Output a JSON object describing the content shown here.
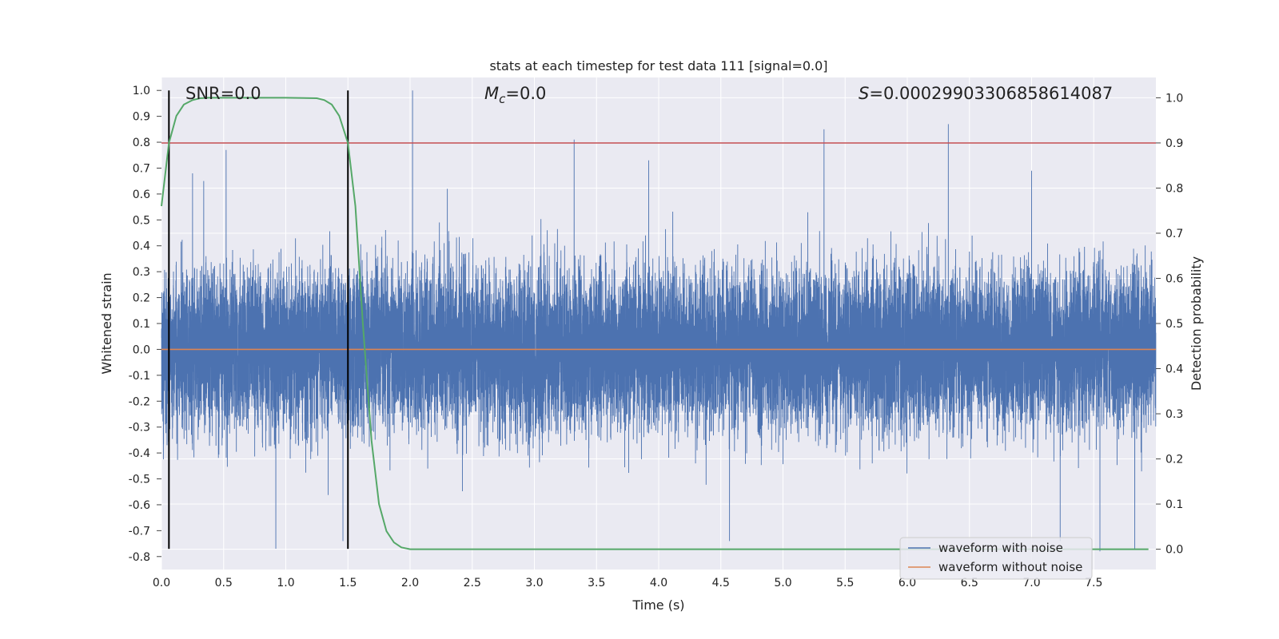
{
  "chart_data": {
    "type": "line",
    "title": "stats at each timestep for test data 111 [signal=0.0]",
    "xlabel": "Time (s)",
    "ylabel": "Whitened strain",
    "ylabel_right": "Detection probability",
    "xlim": [
      0.0,
      8.0
    ],
    "ylim": [
      -0.85,
      1.05
    ],
    "ylim_right": [
      -0.045,
      1.045
    ],
    "x_ticks": [
      "0.0",
      "0.5",
      "1.0",
      "1.5",
      "2.0",
      "2.5",
      "3.0",
      "3.5",
      "4.0",
      "4.5",
      "5.0",
      "5.5",
      "6.0",
      "6.5",
      "7.0",
      "7.5"
    ],
    "y_ticks": [
      "1.0",
      "0.9",
      "0.8",
      "0.7",
      "0.6",
      "0.5",
      "0.4",
      "0.3",
      "0.2",
      "0.1",
      "0.0",
      "-0.1",
      "-0.2",
      "-0.3",
      "-0.4",
      "-0.5",
      "-0.6",
      "-0.7",
      "-0.8"
    ],
    "y_ticks_right": [
      "1.0",
      "0.9",
      "0.8",
      "0.7",
      "0.6",
      "0.5",
      "0.4",
      "0.3",
      "0.2",
      "0.1",
      "0.0"
    ],
    "grid": true,
    "background": "#eaeaf2",
    "annotations": {
      "snr": "SNR=0.0",
      "mc_symbol": "M",
      "mc_sub": "c",
      "mc_value": "=0.0",
      "s_symbol": "S",
      "s_value": "=0.00029903306858614087"
    },
    "vlines_x": [
      0.06,
      1.5
    ],
    "vline_range": [
      -0.77,
      1.0
    ],
    "threshold_right": 0.9,
    "series": [
      {
        "name": "waveform with noise",
        "color": "#4c72b0",
        "axis": "left",
        "t_start": 0.0,
        "t_end": 8.0,
        "sample_rate": 2048,
        "std": 0.155,
        "peaks": [
          {
            "x": 0.06,
            "y": 0.64
          },
          {
            "x": 0.25,
            "y": 0.68
          },
          {
            "x": 0.34,
            "y": 0.65
          },
          {
            "x": 0.52,
            "y": 0.77
          },
          {
            "x": 0.92,
            "y": -0.77
          },
          {
            "x": 1.46,
            "y": -0.74
          },
          {
            "x": 2.02,
            "y": 1.0
          },
          {
            "x": 2.3,
            "y": 0.62
          },
          {
            "x": 3.32,
            "y": 0.81
          },
          {
            "x": 3.92,
            "y": 0.73
          },
          {
            "x": 4.57,
            "y": -0.74
          },
          {
            "x": 5.33,
            "y": 0.85
          },
          {
            "x": 6.33,
            "y": 0.87
          },
          {
            "x": 7.23,
            "y": -0.74
          },
          {
            "x": 7.55,
            "y": -0.78
          },
          {
            "x": 7.83,
            "y": -0.77
          },
          {
            "x": 7.0,
            "y": 0.69
          }
        ]
      },
      {
        "name": "waveform without noise",
        "color": "#dd8452",
        "axis": "left",
        "x": [
          0.0,
          8.0
        ],
        "y": [
          0.0,
          0.0
        ]
      },
      {
        "name": "",
        "color": "#55a868",
        "axis": "right",
        "x": [
          0.0,
          0.06,
          0.12,
          0.18,
          0.25,
          0.31,
          0.37,
          0.5,
          0.75,
          1.0,
          1.25,
          1.31,
          1.37,
          1.43,
          1.5,
          1.56,
          1.62,
          1.69,
          1.75,
          1.81,
          1.87,
          1.93,
          2.0,
          2.5,
          3.0,
          4.0,
          5.0,
          6.0,
          7.0,
          7.94
        ],
        "y": [
          0.76,
          0.9,
          0.96,
          0.985,
          0.995,
          0.999,
          1.0,
          1.0,
          1.0,
          1.0,
          0.999,
          0.995,
          0.985,
          0.96,
          0.9,
          0.76,
          0.5,
          0.24,
          0.1,
          0.04,
          0.015,
          0.004,
          0.0,
          0.0,
          0.0,
          0.0,
          0.0,
          0.0,
          0.0,
          0.0
        ]
      }
    ],
    "legend": {
      "position": "lower-right",
      "entries": [
        {
          "label": "waveform with noise",
          "color": "#4c72b0"
        },
        {
          "label": "waveform without noise",
          "color": "#dd8452"
        }
      ]
    }
  }
}
